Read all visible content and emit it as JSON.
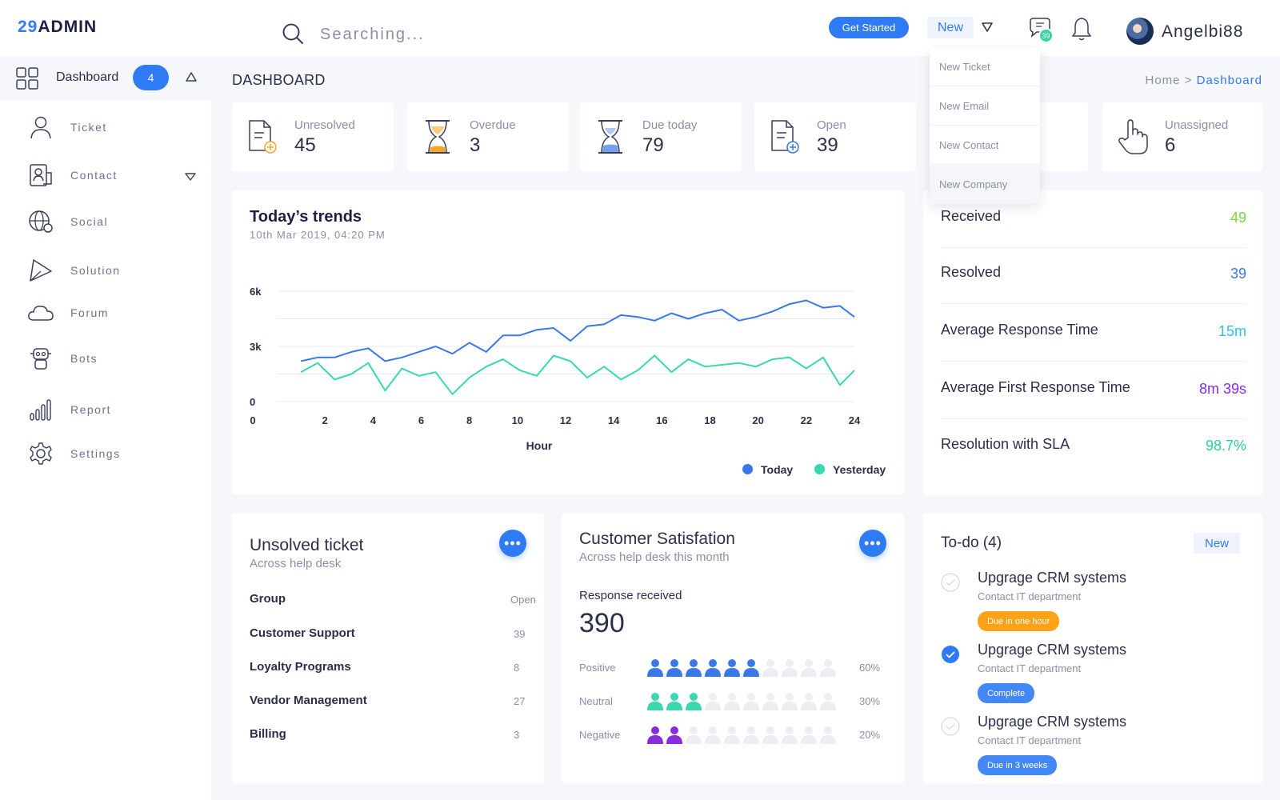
{
  "header": {
    "logo_number": "29",
    "logo_text": "ADMIN",
    "search_placeholder": "Searching...",
    "get_started_label": "Get Started",
    "new_label": "New",
    "chat_badge": "39",
    "username": "Angelbi88"
  },
  "sidebar": {
    "dashboard": {
      "label": "Dashboard",
      "badge": "4"
    },
    "items": [
      {
        "label": "Ticket",
        "icon": "user-icon"
      },
      {
        "label": "Contact",
        "icon": "contact-icon"
      },
      {
        "label": "Social",
        "icon": "globe-icon"
      },
      {
        "label": "Solution",
        "icon": "paper-plane-icon"
      },
      {
        "label": "Forum",
        "icon": "cloud-icon"
      },
      {
        "label": "Bots",
        "icon": "robot-icon"
      },
      {
        "label": "Report",
        "icon": "bar-chart-icon"
      },
      {
        "label": "Settings",
        "icon": "gear-icon"
      }
    ]
  },
  "page": {
    "title": "DASHBOARD",
    "breadcrumb_home": "Home",
    "breadcrumb_sep": ">",
    "breadcrumb_current": "Dashboard"
  },
  "stats": [
    {
      "label": "Unresolved",
      "value": "45",
      "icon": "document-add-icon"
    },
    {
      "label": "Overdue",
      "value": "3",
      "icon": "hourglass-icon"
    },
    {
      "label": "Due today",
      "value": "79",
      "icon": "hourglass-icon"
    },
    {
      "label": "Open",
      "value": "39",
      "icon": "document-plus-icon"
    },
    {
      "label": "Unassigned",
      "value": "6",
      "icon": "hand-pointer-icon"
    }
  ],
  "dropdown": {
    "items": [
      "New Ticket",
      "New Email",
      "New Contact",
      "New Company"
    ]
  },
  "trends": {
    "title": "Today’s trends",
    "subtitle": "10th Mar 2019, 04:20 PM"
  },
  "chart_data": {
    "type": "line",
    "xlabel": "Hour",
    "ylabel": "",
    "xlim": [
      0,
      24
    ],
    "ylim": [
      0,
      6000
    ],
    "x_ticks": [
      0,
      2,
      4,
      6,
      8,
      10,
      12,
      14,
      16,
      18,
      20,
      22,
      24
    ],
    "y_ticks": [
      0,
      3000,
      6000
    ],
    "y_tick_labels": [
      "0",
      "3k",
      "6k"
    ],
    "grid": true,
    "legend": "bottom-right",
    "x": [
      1,
      1.7,
      2.4,
      3.1,
      3.8,
      4.5,
      5.2,
      5.9,
      6.6,
      7.3,
      8,
      8.7,
      9.4,
      10.1,
      10.8,
      11.5,
      12.2,
      12.9,
      13.6,
      14.3,
      15,
      15.7,
      16.4,
      17.1,
      17.8,
      18.5,
      19.2,
      19.9,
      20.6,
      21.3,
      22,
      22.7,
      23.4,
      24
    ],
    "series": [
      {
        "name": "Today",
        "color": "#3b78e7",
        "values": [
          2200,
          2400,
          2400,
          2700,
          2900,
          2200,
          2400,
          2700,
          3000,
          2600,
          3200,
          2700,
          3600,
          3600,
          3900,
          4000,
          3300,
          4100,
          4200,
          4700,
          4600,
          4400,
          4800,
          4500,
          4800,
          5000,
          4400,
          4600,
          4900,
          5300,
          5500,
          5100,
          5200,
          4600
        ]
      },
      {
        "name": "Yesterday",
        "color": "#3ad7b0",
        "values": [
          1600,
          2100,
          1200,
          1500,
          2100,
          600,
          1800,
          1400,
          1600,
          400,
          1300,
          1900,
          2300,
          1700,
          1400,
          2500,
          2200,
          1300,
          1900,
          1200,
          1700,
          2500,
          1600,
          2300,
          1900,
          2000,
          2100,
          1900,
          2300,
          2400,
          1800,
          2400,
          900,
          1700
        ]
      }
    ]
  },
  "metrics": [
    {
      "name": "Received",
      "value": "49",
      "color": "#7bd53d"
    },
    {
      "name": "Resolved",
      "value": "39",
      "color": "#3b78e7"
    },
    {
      "name": "Average Response Time",
      "value": "15m",
      "color": "#2cc3e8"
    },
    {
      "name": "Average First Response Time",
      "value": "8m 39s",
      "color": "#8a2be2"
    },
    {
      "name": "Resolution with SLA",
      "value": "98.7%",
      "color": "#24d39a"
    }
  ],
  "unsolved": {
    "title": "Unsolved ticket",
    "subtitle": "Across help desk",
    "more": "•••",
    "header": {
      "name": "Group",
      "value": "Open"
    },
    "rows": [
      {
        "name": "Customer Support",
        "value": "39"
      },
      {
        "name": "Loyalty Programs",
        "value": "8"
      },
      {
        "name": "Vendor Management",
        "value": "27"
      },
      {
        "name": "Billing",
        "value": "3"
      }
    ]
  },
  "satisfaction": {
    "title": "Customer Satisfation",
    "subtitle": "Across help desk this month",
    "more": "•••",
    "response_label": "Response received",
    "response_value": "390",
    "rows": [
      {
        "label": "Positive",
        "pct": "60%",
        "filled": 6,
        "color": "#3b78e7"
      },
      {
        "label": "Neutral",
        "pct": "30%",
        "filled": 3,
        "color": "#3ad7b0"
      },
      {
        "label": "Negative",
        "pct": "20%",
        "filled": 2,
        "color": "#8a2be2"
      }
    ]
  },
  "todo": {
    "title": "To-do (4)",
    "new_label": "New",
    "items": [
      {
        "name": "Upgrage CRM systems",
        "sub": "Contact IT department",
        "tag": "Due in one hour",
        "tag_color": "#ff9800",
        "done": false
      },
      {
        "name": "Upgrage CRM systems",
        "sub": "Contact IT department",
        "tag": "Complete",
        "tag_color": "#2f7bf5",
        "done": true
      },
      {
        "name": "Upgrage CRM systems",
        "sub": "Contact IT department",
        "tag": "Due in 3 weeks",
        "tag_color": "#2f7bf5",
        "done": false
      }
    ]
  }
}
